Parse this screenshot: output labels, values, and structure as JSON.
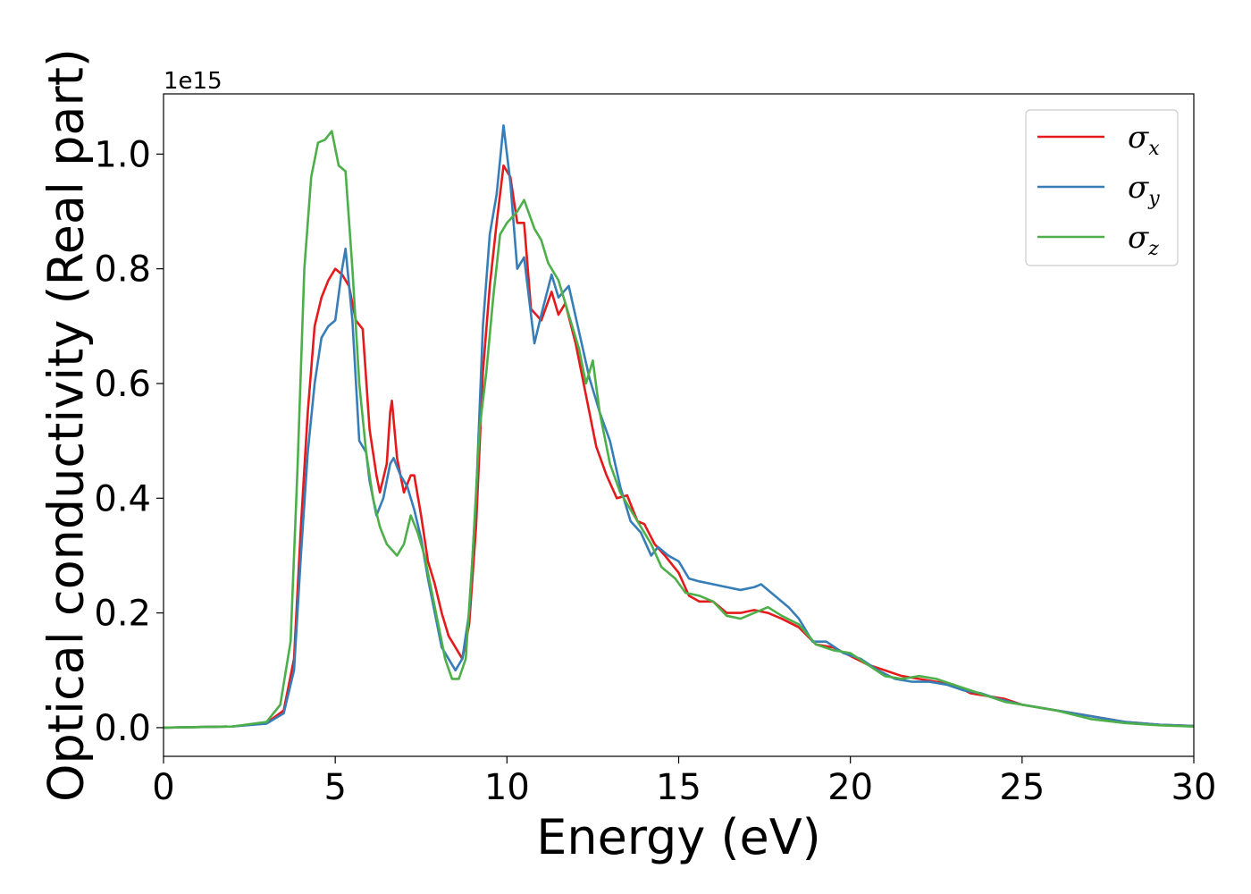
{
  "chart_data": {
    "type": "line",
    "title": "",
    "xlabel": "Energy (eV)",
    "ylabel": "Optical conductivity (Real part)",
    "y_offset_label": "1e15",
    "xlim": [
      0,
      30
    ],
    "ylim": [
      -0.05,
      1.105
    ],
    "x_ticks": [
      0,
      5,
      10,
      15,
      20,
      25,
      30
    ],
    "x_tick_labels": [
      "0",
      "5",
      "10",
      "15",
      "20",
      "25",
      "30"
    ],
    "y_ticks": [
      0.0,
      0.2,
      0.4,
      0.6,
      0.8,
      1.0
    ],
    "y_tick_labels": [
      "0.0",
      "0.2",
      "0.4",
      "0.6",
      "0.8",
      "1.0"
    ],
    "grid": false,
    "legend_position": "top-right",
    "series": [
      {
        "name": "σx",
        "legend_base": "σ",
        "legend_sub": "x",
        "color": "#e41a1c",
        "points": [
          [
            0,
            0
          ],
          [
            2,
            0.002
          ],
          [
            3,
            0.008
          ],
          [
            3.5,
            0.03
          ],
          [
            3.8,
            0.12
          ],
          [
            4.0,
            0.35
          ],
          [
            4.2,
            0.55
          ],
          [
            4.4,
            0.7
          ],
          [
            4.6,
            0.75
          ],
          [
            4.8,
            0.78
          ],
          [
            5.0,
            0.8
          ],
          [
            5.2,
            0.79
          ],
          [
            5.4,
            0.77
          ],
          [
            5.6,
            0.71
          ],
          [
            5.8,
            0.695
          ],
          [
            6.0,
            0.52
          ],
          [
            6.2,
            0.44
          ],
          [
            6.3,
            0.41
          ],
          [
            6.5,
            0.46
          ],
          [
            6.6,
            0.55
          ],
          [
            6.65,
            0.57
          ],
          [
            6.8,
            0.47
          ],
          [
            7.0,
            0.41
          ],
          [
            7.2,
            0.44
          ],
          [
            7.3,
            0.44
          ],
          [
            7.5,
            0.37
          ],
          [
            7.7,
            0.29
          ],
          [
            7.9,
            0.25
          ],
          [
            8.1,
            0.2
          ],
          [
            8.3,
            0.16
          ],
          [
            8.5,
            0.14
          ],
          [
            8.7,
            0.12
          ],
          [
            8.9,
            0.18
          ],
          [
            9.1,
            0.35
          ],
          [
            9.3,
            0.62
          ],
          [
            9.5,
            0.77
          ],
          [
            9.7,
            0.88
          ],
          [
            9.9,
            0.98
          ],
          [
            10.1,
            0.96
          ],
          [
            10.3,
            0.88
          ],
          [
            10.5,
            0.88
          ],
          [
            10.7,
            0.73
          ],
          [
            11.0,
            0.71
          ],
          [
            11.3,
            0.76
          ],
          [
            11.5,
            0.72
          ],
          [
            11.7,
            0.74
          ],
          [
            12.0,
            0.67
          ],
          [
            12.3,
            0.58
          ],
          [
            12.6,
            0.49
          ],
          [
            12.9,
            0.44
          ],
          [
            13.2,
            0.4
          ],
          [
            13.5,
            0.405
          ],
          [
            13.8,
            0.36
          ],
          [
            14.0,
            0.355
          ],
          [
            14.3,
            0.32
          ],
          [
            14.6,
            0.3
          ],
          [
            15.0,
            0.27
          ],
          [
            15.3,
            0.23
          ],
          [
            15.6,
            0.22
          ],
          [
            16.0,
            0.22
          ],
          [
            16.4,
            0.2
          ],
          [
            16.8,
            0.2
          ],
          [
            17.2,
            0.205
          ],
          [
            17.6,
            0.2
          ],
          [
            18.0,
            0.19
          ],
          [
            18.5,
            0.175
          ],
          [
            19.0,
            0.145
          ],
          [
            19.5,
            0.14
          ],
          [
            20.0,
            0.125
          ],
          [
            20.5,
            0.11
          ],
          [
            21.0,
            0.1
          ],
          [
            21.5,
            0.09
          ],
          [
            22.0,
            0.085
          ],
          [
            22.5,
            0.08
          ],
          [
            23.0,
            0.075
          ],
          [
            23.5,
            0.06
          ],
          [
            24.0,
            0.055
          ],
          [
            24.5,
            0.05
          ],
          [
            25.0,
            0.04
          ],
          [
            26.0,
            0.03
          ],
          [
            27.0,
            0.02
          ],
          [
            28.0,
            0.01
          ],
          [
            29.0,
            0.005
          ],
          [
            30.0,
            0.003
          ]
        ]
      },
      {
        "name": "σy",
        "legend_base": "σ",
        "legend_sub": "y",
        "color": "#377eb8",
        "points": [
          [
            0,
            0
          ],
          [
            2,
            0.002
          ],
          [
            3,
            0.007
          ],
          [
            3.5,
            0.025
          ],
          [
            3.8,
            0.1
          ],
          [
            4.0,
            0.3
          ],
          [
            4.2,
            0.48
          ],
          [
            4.4,
            0.6
          ],
          [
            4.6,
            0.68
          ],
          [
            4.8,
            0.7
          ],
          [
            5.0,
            0.71
          ],
          [
            5.2,
            0.8
          ],
          [
            5.3,
            0.835
          ],
          [
            5.5,
            0.71
          ],
          [
            5.7,
            0.5
          ],
          [
            5.9,
            0.48
          ],
          [
            6.0,
            0.43
          ],
          [
            6.2,
            0.37
          ],
          [
            6.4,
            0.4
          ],
          [
            6.6,
            0.46
          ],
          [
            6.7,
            0.47
          ],
          [
            6.9,
            0.44
          ],
          [
            7.1,
            0.42
          ],
          [
            7.3,
            0.38
          ],
          [
            7.5,
            0.33
          ],
          [
            7.7,
            0.26
          ],
          [
            7.9,
            0.2
          ],
          [
            8.1,
            0.14
          ],
          [
            8.3,
            0.12
          ],
          [
            8.5,
            0.1
          ],
          [
            8.7,
            0.12
          ],
          [
            8.9,
            0.2
          ],
          [
            9.1,
            0.4
          ],
          [
            9.3,
            0.7
          ],
          [
            9.5,
            0.86
          ],
          [
            9.7,
            0.93
          ],
          [
            9.9,
            1.05
          ],
          [
            10.1,
            0.95
          ],
          [
            10.3,
            0.8
          ],
          [
            10.5,
            0.82
          ],
          [
            10.8,
            0.67
          ],
          [
            11.0,
            0.72
          ],
          [
            11.3,
            0.79
          ],
          [
            11.5,
            0.75
          ],
          [
            11.8,
            0.77
          ],
          [
            12.1,
            0.69
          ],
          [
            12.4,
            0.61
          ],
          [
            12.7,
            0.55
          ],
          [
            13.0,
            0.5
          ],
          [
            13.3,
            0.42
          ],
          [
            13.6,
            0.36
          ],
          [
            13.9,
            0.34
          ],
          [
            14.2,
            0.3
          ],
          [
            14.4,
            0.315
          ],
          [
            14.7,
            0.3
          ],
          [
            15.0,
            0.29
          ],
          [
            15.3,
            0.26
          ],
          [
            15.6,
            0.255
          ],
          [
            16.0,
            0.25
          ],
          [
            16.4,
            0.245
          ],
          [
            16.8,
            0.24
          ],
          [
            17.2,
            0.245
          ],
          [
            17.4,
            0.25
          ],
          [
            17.8,
            0.23
          ],
          [
            18.2,
            0.21
          ],
          [
            18.5,
            0.19
          ],
          [
            18.9,
            0.15
          ],
          [
            19.3,
            0.15
          ],
          [
            19.8,
            0.13
          ],
          [
            20.3,
            0.12
          ],
          [
            20.8,
            0.1
          ],
          [
            21.3,
            0.085
          ],
          [
            21.8,
            0.08
          ],
          [
            22.3,
            0.08
          ],
          [
            22.8,
            0.075
          ],
          [
            23.3,
            0.065
          ],
          [
            23.8,
            0.06
          ],
          [
            24.3,
            0.05
          ],
          [
            25.0,
            0.04
          ],
          [
            26.0,
            0.03
          ],
          [
            27.0,
            0.02
          ],
          [
            28.0,
            0.01
          ],
          [
            29.0,
            0.005
          ],
          [
            30.0,
            0.003
          ]
        ]
      },
      {
        "name": "σz",
        "legend_base": "σ",
        "legend_sub": "z",
        "color": "#4daf4a",
        "points": [
          [
            0,
            0
          ],
          [
            2,
            0.002
          ],
          [
            3,
            0.01
          ],
          [
            3.4,
            0.04
          ],
          [
            3.7,
            0.15
          ],
          [
            3.9,
            0.45
          ],
          [
            4.1,
            0.8
          ],
          [
            4.3,
            0.96
          ],
          [
            4.5,
            1.02
          ],
          [
            4.7,
            1.025
          ],
          [
            4.9,
            1.04
          ],
          [
            5.1,
            0.98
          ],
          [
            5.3,
            0.97
          ],
          [
            5.5,
            0.8
          ],
          [
            5.7,
            0.6
          ],
          [
            5.9,
            0.48
          ],
          [
            6.1,
            0.4
          ],
          [
            6.3,
            0.35
          ],
          [
            6.5,
            0.32
          ],
          [
            6.8,
            0.3
          ],
          [
            7.0,
            0.32
          ],
          [
            7.2,
            0.37
          ],
          [
            7.4,
            0.34
          ],
          [
            7.6,
            0.3
          ],
          [
            7.8,
            0.24
          ],
          [
            8.0,
            0.18
          ],
          [
            8.2,
            0.12
          ],
          [
            8.4,
            0.085
          ],
          [
            8.6,
            0.085
          ],
          [
            8.8,
            0.12
          ],
          [
            9.0,
            0.3
          ],
          [
            9.2,
            0.52
          ],
          [
            9.4,
            0.62
          ],
          [
            9.6,
            0.75
          ],
          [
            9.8,
            0.86
          ],
          [
            10.0,
            0.88
          ],
          [
            10.3,
            0.9
          ],
          [
            10.5,
            0.92
          ],
          [
            10.8,
            0.87
          ],
          [
            11.0,
            0.85
          ],
          [
            11.2,
            0.81
          ],
          [
            11.5,
            0.78
          ],
          [
            11.8,
            0.72
          ],
          [
            12.1,
            0.66
          ],
          [
            12.3,
            0.6
          ],
          [
            12.5,
            0.64
          ],
          [
            12.7,
            0.55
          ],
          [
            13.0,
            0.46
          ],
          [
            13.3,
            0.41
          ],
          [
            13.6,
            0.38
          ],
          [
            13.9,
            0.35
          ],
          [
            14.2,
            0.32
          ],
          [
            14.5,
            0.28
          ],
          [
            14.9,
            0.26
          ],
          [
            15.2,
            0.235
          ],
          [
            15.6,
            0.23
          ],
          [
            16.0,
            0.22
          ],
          [
            16.4,
            0.195
          ],
          [
            16.8,
            0.19
          ],
          [
            17.2,
            0.2
          ],
          [
            17.6,
            0.21
          ],
          [
            18.0,
            0.195
          ],
          [
            18.5,
            0.18
          ],
          [
            19.0,
            0.145
          ],
          [
            19.5,
            0.135
          ],
          [
            20.0,
            0.13
          ],
          [
            20.5,
            0.11
          ],
          [
            21.0,
            0.09
          ],
          [
            21.5,
            0.085
          ],
          [
            22.0,
            0.09
          ],
          [
            22.5,
            0.085
          ],
          [
            23.0,
            0.075
          ],
          [
            23.5,
            0.065
          ],
          [
            24.0,
            0.055
          ],
          [
            24.5,
            0.045
          ],
          [
            25.0,
            0.04
          ],
          [
            26.0,
            0.03
          ],
          [
            27.0,
            0.015
          ],
          [
            28.0,
            0.008
          ],
          [
            29.0,
            0.004
          ],
          [
            30.0,
            0.002
          ]
        ]
      }
    ]
  }
}
